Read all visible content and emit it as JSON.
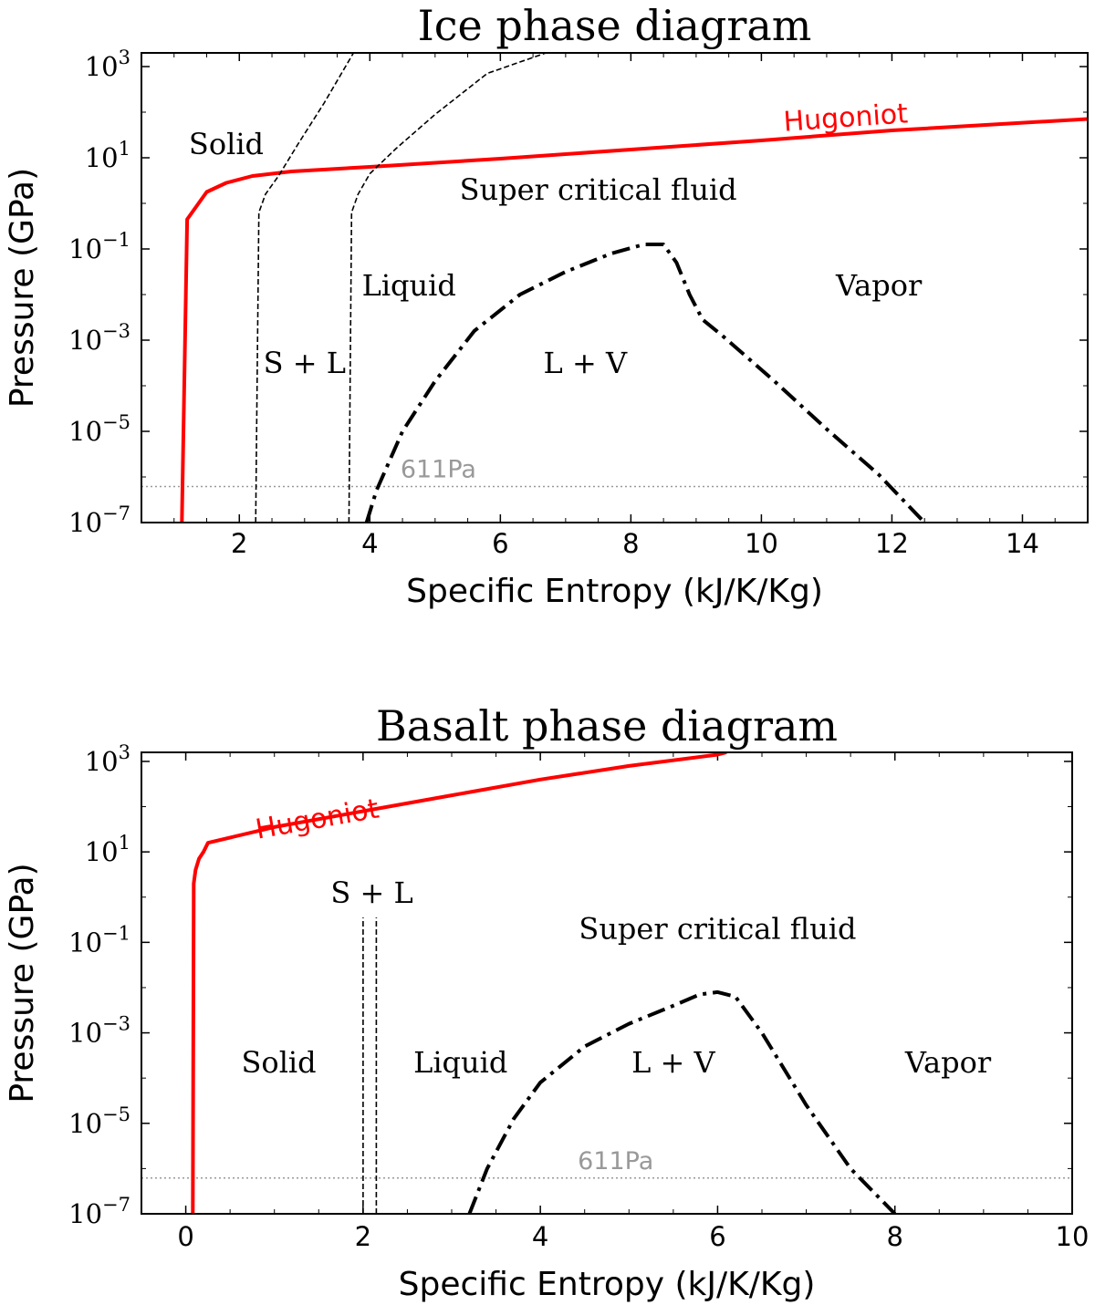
{
  "chart_data": [
    {
      "type": "line",
      "title": "Ice phase diagram",
      "xlabel": "Specific Entropy (kJ/K/Kg)",
      "ylabel": "Pressure (GPa)",
      "xlim": [
        0.5,
        15
      ],
      "ylim_exp": [
        -7,
        3.3
      ],
      "yscale": "log",
      "xticks": [
        2,
        4,
        6,
        8,
        10,
        12,
        14
      ],
      "xtick_labels": [
        "2",
        "4",
        "6",
        "8",
        "10",
        "12",
        "14"
      ],
      "yticks_exp": [
        -7,
        -5,
        -3,
        -1,
        1,
        3
      ],
      "ytick_labels": [
        "10",
        "10",
        "10",
        "10",
        "10",
        "10"
      ],
      "ytick_exps": [
        "−7",
        "−5",
        "−3",
        "−1",
        "1",
        "3"
      ],
      "reference_line": {
        "label": "611Pa",
        "log10_gpa": -6.21
      },
      "series": [
        {
          "name": "Hugoniot",
          "role": "hugoniot",
          "style": "solid-red",
          "x": [
            1.12,
            1.2,
            1.5,
            1.8,
            2.2,
            2.8,
            4,
            6,
            8,
            10,
            12,
            15
          ],
          "log10y": [
            -7,
            -0.35,
            0.25,
            0.45,
            0.6,
            0.7,
            0.8,
            0.98,
            1.18,
            1.38,
            1.6,
            1.85
          ]
        },
        {
          "role": "solidus",
          "style": "dashed",
          "x": [
            2.25,
            2.3,
            2.4,
            2.6,
            2.9,
            3.3,
            3.75
          ],
          "log10y": [
            -7,
            -0.2,
            0.2,
            0.6,
            1.3,
            2.2,
            3.3
          ]
        },
        {
          "role": "liquidus",
          "style": "dashed",
          "x": [
            3.68,
            3.72,
            3.82,
            4.0,
            4.4,
            5.0,
            5.8,
            6.7
          ],
          "log10y": [
            -7,
            -0.2,
            0.2,
            0.65,
            1.2,
            1.95,
            2.85,
            3.3
          ]
        },
        {
          "role": "vapor-dome",
          "style": "dashdot",
          "x": [
            3.95,
            4.1,
            4.5,
            5.0,
            5.6,
            6.3,
            7.0,
            7.7,
            8.2,
            8.5,
            8.7,
            8.9,
            9.1,
            9.4,
            10.2,
            11.0,
            11.8,
            12.5
          ],
          "log10y": [
            -7,
            -6.3,
            -5.0,
            -3.9,
            -2.8,
            -2.0,
            -1.5,
            -1.1,
            -0.9,
            -0.9,
            -1.3,
            -2.0,
            -2.55,
            -2.9,
            -3.9,
            -4.95,
            -5.95,
            -7
          ]
        }
      ],
      "annotations": [
        {
          "text": "Solid",
          "x": 1.8,
          "log10y": 1.3
        },
        {
          "text": "Super critical fluid",
          "x": 7.5,
          "log10y": 0.3
        },
        {
          "text": "Liquid",
          "x": 4.6,
          "log10y": -1.8
        },
        {
          "text": "Vapor",
          "x": 11.8,
          "log10y": -1.8
        },
        {
          "text": "S + L",
          "x": 3.0,
          "log10y": -3.5
        },
        {
          "text": "L + V",
          "x": 7.3,
          "log10y": -3.5
        },
        {
          "text": "Hugoniot",
          "x": 11.3,
          "log10y": 1.9,
          "color": "#ff0000"
        }
      ]
    },
    {
      "type": "line",
      "title": "Basalt phase diagram",
      "xlabel": "Specific Entropy (kJ/K/Kg)",
      "ylabel": "Pressure (GPa)",
      "xlim": [
        -0.5,
        10
      ],
      "ylim_exp": [
        -7,
        3.2
      ],
      "yscale": "log",
      "xticks": [
        0,
        2,
        4,
        6,
        8,
        10
      ],
      "xtick_labels": [
        "0",
        "2",
        "4",
        "6",
        "8",
        "10"
      ],
      "yticks_exp": [
        -7,
        -5,
        -3,
        -1,
        1,
        3
      ],
      "ytick_labels": [
        "10",
        "10",
        "10",
        "10",
        "10",
        "10"
      ],
      "ytick_exps": [
        "−7",
        "−5",
        "−3",
        "−1",
        "1",
        "3"
      ],
      "reference_line": {
        "label": "611Pa",
        "log10_gpa": -6.21
      },
      "series": [
        {
          "name": "Hugoniot",
          "role": "hugoniot",
          "style": "solid-red",
          "x": [
            0.08,
            0.09,
            0.11,
            0.15,
            0.2,
            0.25,
            1,
            2,
            3,
            4,
            5,
            6,
            6.1
          ],
          "log10y": [
            -7,
            0.3,
            0.6,
            0.85,
            1.0,
            1.2,
            1.55,
            1.9,
            2.25,
            2.6,
            2.9,
            3.15,
            3.2
          ]
        },
        {
          "role": "solidus",
          "style": "dashed",
          "x": [
            2.0,
            2.0
          ],
          "log10y": [
            -7,
            -0.45
          ]
        },
        {
          "role": "liquidus",
          "style": "dashed",
          "x": [
            2.15,
            2.15
          ],
          "log10y": [
            -7,
            -0.45
          ]
        },
        {
          "role": "vapor-dome",
          "style": "dashdot",
          "x": [
            3.2,
            3.4,
            3.7,
            4.0,
            4.5,
            5.0,
            5.5,
            5.8,
            6.0,
            6.2,
            6.5,
            7.0,
            7.5,
            8.0
          ],
          "log10y": [
            -7,
            -6.0,
            -4.9,
            -4.1,
            -3.3,
            -2.8,
            -2.4,
            -2.15,
            -2.1,
            -2.2,
            -3.0,
            -4.6,
            -6.0,
            -7
          ]
        }
      ],
      "annotations": [
        {
          "text": "S + L",
          "x": 2.1,
          "log10y": 0.1
        },
        {
          "text": "Super critical fluid",
          "x": 6.0,
          "log10y": -0.7
        },
        {
          "text": "Solid",
          "x": 1.05,
          "log10y": -3.65
        },
        {
          "text": "Liquid",
          "x": 3.1,
          "log10y": -3.65
        },
        {
          "text": "L + V",
          "x": 5.5,
          "log10y": -3.65
        },
        {
          "text": "Vapor",
          "x": 8.6,
          "log10y": -3.65
        },
        {
          "text": "Hugoniot",
          "x": 1.5,
          "log10y": 1.75,
          "color": "#ff0000"
        }
      ]
    }
  ]
}
